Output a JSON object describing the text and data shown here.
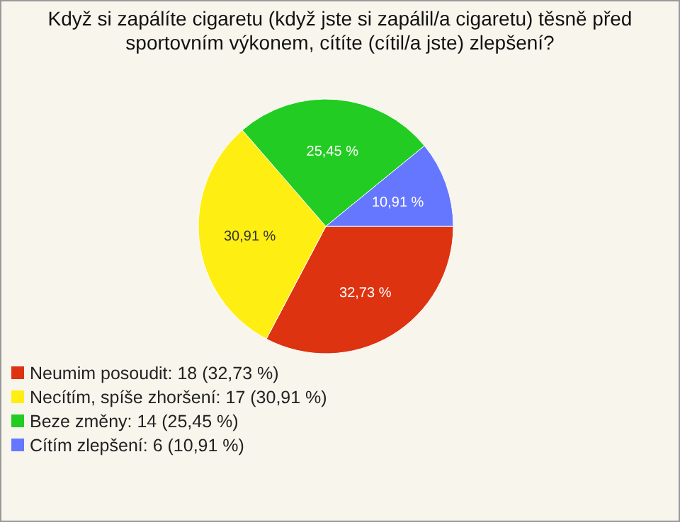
{
  "chart_data": {
    "type": "pie",
    "title": "Když si zapálíte cigaretu (když jste si zapálil/a cigaretu) těsně před sportovním výkonem, cítíte (cítil/a jste) zlepšení?",
    "categories": [
      "Neumim posoudit: 18 (32,73 %)",
      "Necítím, spíše zhoršení: 17 (30,91 %)",
      "Beze změny: 14 (25,45 %)",
      "Cítím zlepšení: 6 (10,91 %)"
    ],
    "values": [
      32.73,
      30.91,
      25.45,
      10.91
    ],
    "value_labels": [
      "32,73 %",
      "30,91 %",
      "25,45 %",
      "10,91 %"
    ],
    "colors": [
      "#dd3311",
      "#ffee11",
      "#22cc22",
      "#6677ff"
    ],
    "legend": "bottom left"
  }
}
